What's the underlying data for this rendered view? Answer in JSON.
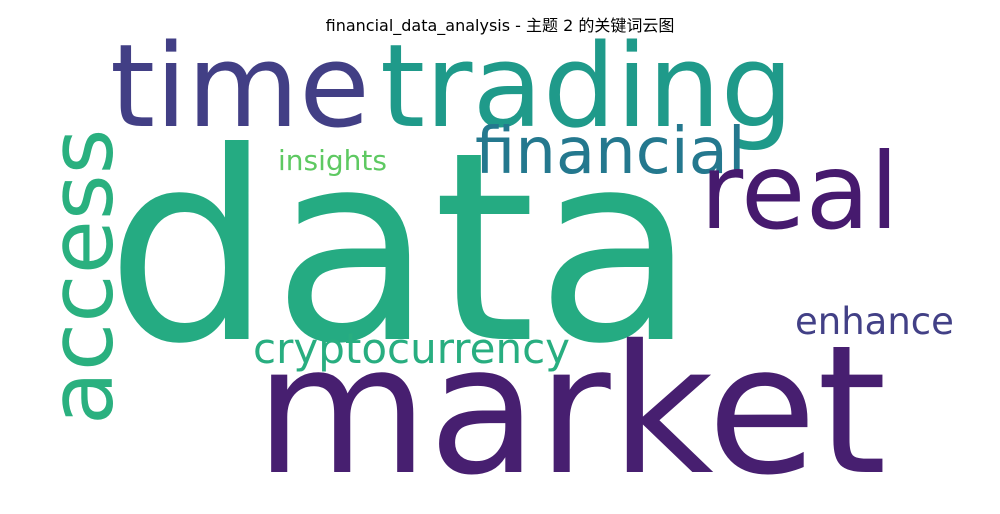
{
  "title": "financial_data_analysis - 主题 2 的关键词云图",
  "words": [
    {
      "key": "data",
      "text": "data",
      "color": "#25ab82"
    },
    {
      "key": "market",
      "text": "market",
      "color": "#471f70"
    },
    {
      "key": "time",
      "text": "time",
      "color": "#423f85"
    },
    {
      "key": "trading",
      "text": "trading",
      "color": "#1f9a8a"
    },
    {
      "key": "access",
      "text": "access",
      "color": "#2ab07f"
    },
    {
      "key": "financial",
      "text": "financial",
      "color": "#24788e"
    },
    {
      "key": "real",
      "text": "real",
      "color": "#461a6e"
    },
    {
      "key": "insights",
      "text": "insights",
      "color": "#5ec962"
    },
    {
      "key": "cryptocurrency",
      "text": "cryptocurrency",
      "color": "#28ae80"
    },
    {
      "key": "enhance",
      "text": "enhance",
      "color": "#424086"
    }
  ]
}
